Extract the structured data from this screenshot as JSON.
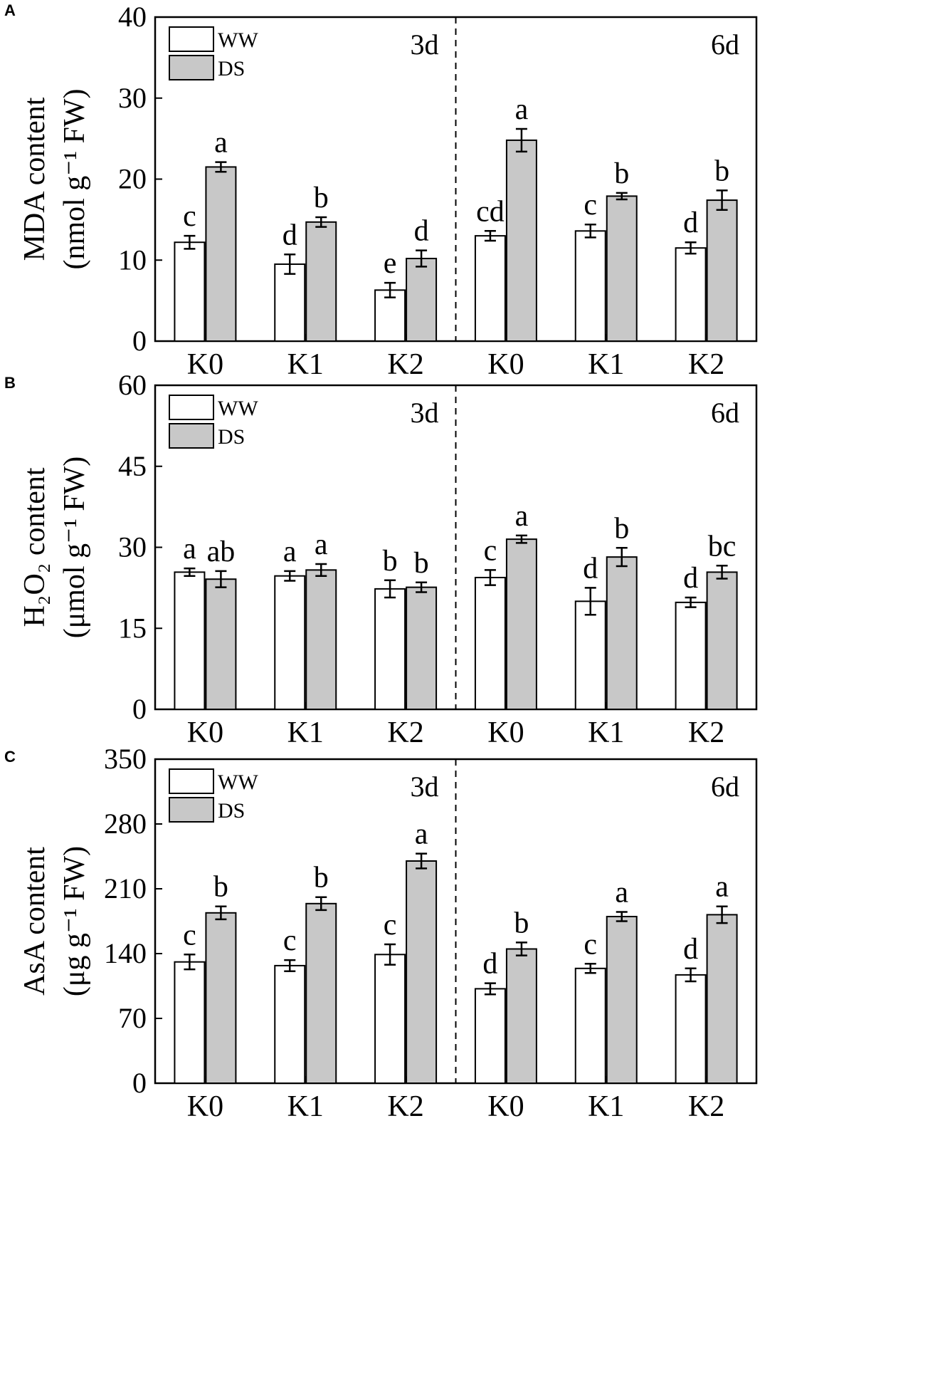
{
  "colors": {
    "ww": "#ffffff",
    "ds": "#c8c8c8",
    "stroke": "#000000"
  },
  "legend": {
    "ww": "WW",
    "ds": "DS"
  },
  "chart_data": [
    {
      "type": "bar",
      "panel": "A",
      "ylabel_line1": "MDA content",
      "ylabel_line2": "(nmol g⁻¹ FW)",
      "ylim": [
        0,
        40
      ],
      "yticks": [
        "0",
        "10",
        "20",
        "30",
        "40"
      ],
      "periods": [
        "3d",
        "6d"
      ],
      "categories": [
        "K0",
        "K1",
        "K2",
        "K0",
        "K1",
        "K2"
      ],
      "series": [
        {
          "name": "WW",
          "values": [
            12.2,
            9.5,
            6.3,
            13.0,
            13.6,
            11.5
          ],
          "errors": [
            0.8,
            1.2,
            0.9,
            0.6,
            0.8,
            0.7
          ],
          "letters": [
            "c",
            "d",
            "e",
            "cd",
            "c",
            "d"
          ]
        },
        {
          "name": "DS",
          "values": [
            21.5,
            14.7,
            10.2,
            24.8,
            17.9,
            17.4
          ],
          "errors": [
            0.6,
            0.6,
            1.0,
            1.4,
            0.4,
            1.2
          ],
          "letters": [
            "a",
            "b",
            "d",
            "a",
            "b",
            "b"
          ]
        }
      ]
    },
    {
      "type": "bar",
      "panel": "B",
      "ylabel_line1": "H₂O₂ content",
      "ylabel_line2": "(μmol g⁻¹ FW)",
      "ylim": [
        0,
        60
      ],
      "yticks": [
        "0",
        "15",
        "30",
        "45",
        "60"
      ],
      "periods": [
        "3d",
        "6d"
      ],
      "categories": [
        "K0",
        "K1",
        "K2",
        "K0",
        "K1",
        "K2"
      ],
      "series": [
        {
          "name": "WW",
          "values": [
            25.4,
            24.7,
            22.3,
            24.4,
            20.0,
            19.8
          ],
          "errors": [
            0.7,
            0.9,
            1.6,
            1.4,
            2.5,
            0.9
          ],
          "letters": [
            "a",
            "a",
            "b",
            "c",
            "d",
            "d"
          ]
        },
        {
          "name": "DS",
          "values": [
            24.1,
            25.8,
            22.6,
            31.5,
            28.2,
            25.4
          ],
          "errors": [
            1.5,
            1.1,
            0.9,
            0.7,
            1.7,
            1.2
          ],
          "letters": [
            "ab",
            "a",
            "b",
            "a",
            "b",
            "bc"
          ]
        }
      ]
    },
    {
      "type": "bar",
      "panel": "C",
      "ylabel_line1": "AsA content",
      "ylabel_line2": "(μg g⁻¹ FW)",
      "ylim": [
        0,
        350
      ],
      "yticks": [
        "0",
        "70",
        "140",
        "210",
        "280",
        "350"
      ],
      "periods": [
        "3d",
        "6d"
      ],
      "categories": [
        "K0",
        "K1",
        "K2",
        "K0",
        "K1",
        "K2"
      ],
      "series": [
        {
          "name": "WW",
          "values": [
            131,
            127,
            139,
            102,
            124,
            117
          ],
          "errors": [
            8,
            6,
            11,
            6,
            5,
            7
          ],
          "letters": [
            "c",
            "c",
            "c",
            "d",
            "c",
            "d"
          ]
        },
        {
          "name": "DS",
          "values": [
            184,
            194,
            240,
            145,
            180,
            182
          ],
          "errors": [
            7,
            7,
            8,
            7,
            5,
            9
          ],
          "letters": [
            "b",
            "b",
            "a",
            "b",
            "a",
            "a"
          ]
        }
      ]
    }
  ]
}
